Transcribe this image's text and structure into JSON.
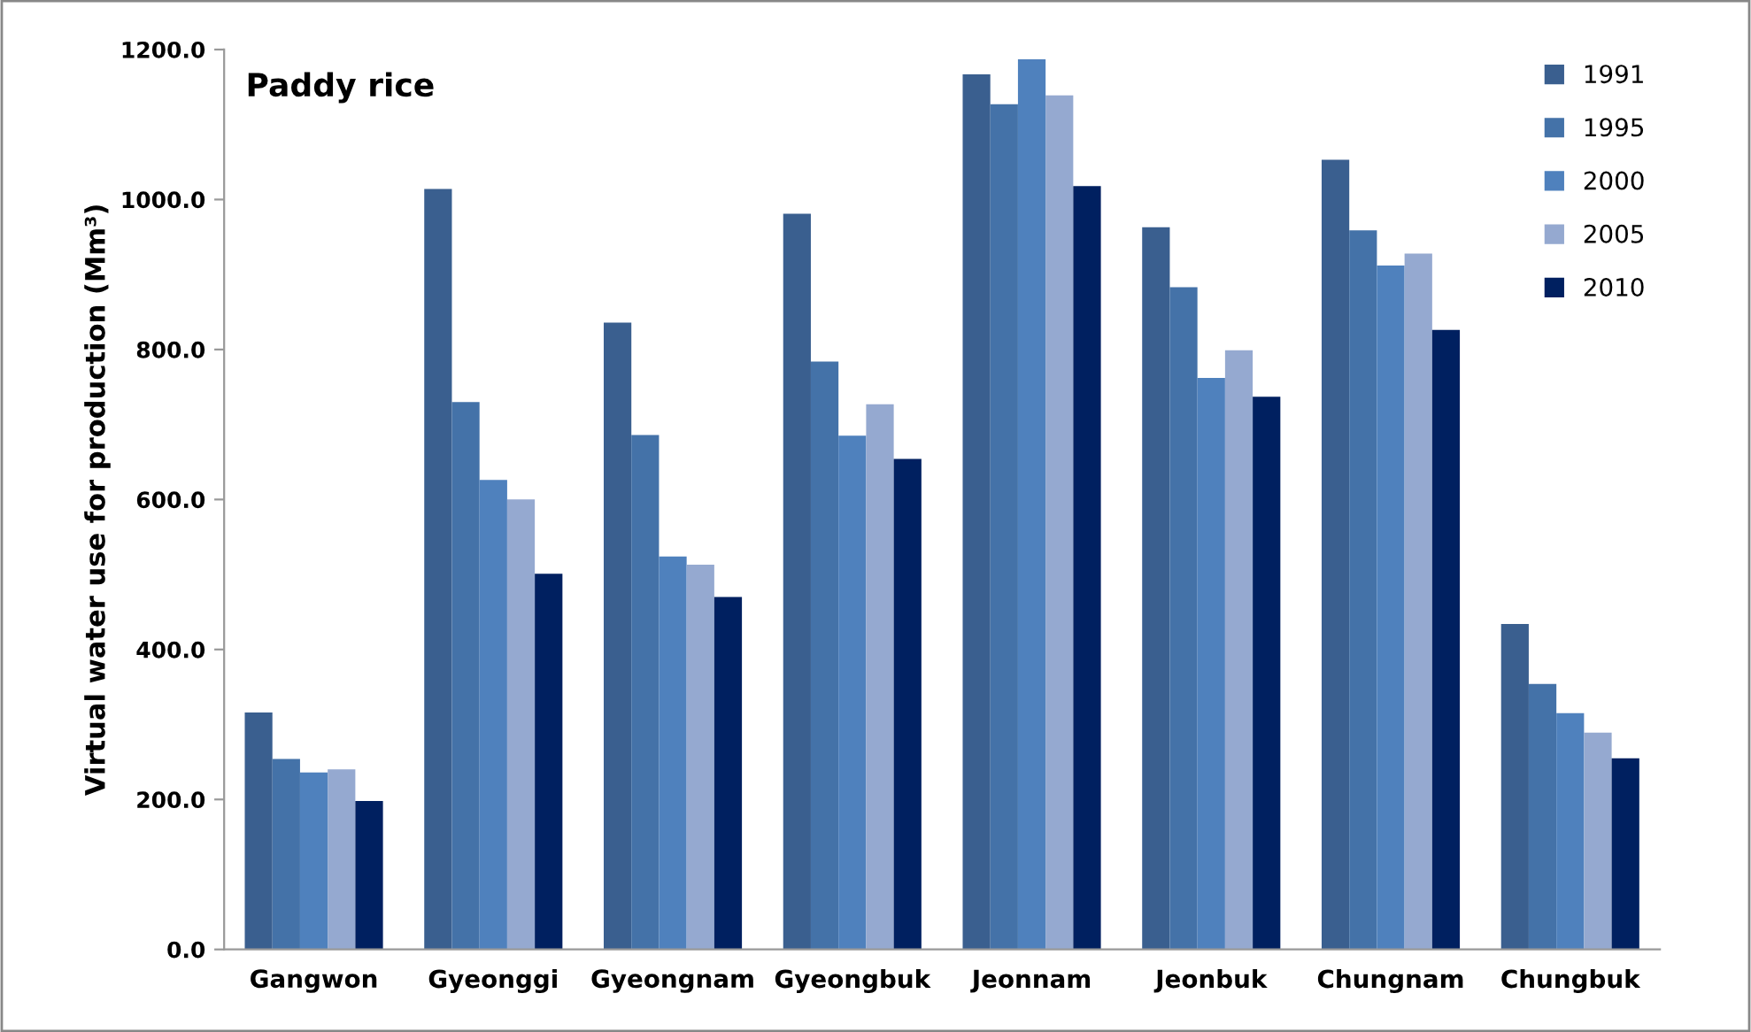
{
  "chart_data": {
    "type": "bar",
    "title": "Paddy rice",
    "ylabel": "Virtual water use for production (Mm³)",
    "categories": [
      "Gangwon",
      "Gyeonggi",
      "Gyeongnam",
      "Gyeongbuk",
      "Jeonnam",
      "Jeonbuk",
      "Chungnam",
      "Chungbuk"
    ],
    "series": [
      {
        "name": "1991",
        "color": "#3a5f8f",
        "values": [
          316,
          1014,
          836,
          981,
          1167,
          963,
          1053,
          434
        ]
      },
      {
        "name": "1995",
        "color": "#4472a8",
        "values": [
          254,
          730,
          686,
          784,
          1127,
          883,
          959,
          354
        ]
      },
      {
        "name": "2000",
        "color": "#4f81bd",
        "values": [
          236,
          626,
          524,
          685,
          1187,
          762,
          912,
          315
        ]
      },
      {
        "name": "2005",
        "color": "#95a9d0",
        "values": [
          240,
          600,
          513,
          727,
          1139,
          799,
          928,
          289
        ]
      },
      {
        "name": "2010",
        "color": "#002060",
        "values": [
          198,
          501,
          470,
          654,
          1018,
          737,
          826,
          255
        ]
      }
    ],
    "ylim": [
      0,
      1200
    ],
    "yticks": [
      {
        "value": 0,
        "label": "0.0"
      },
      {
        "value": 200,
        "label": "200.0"
      },
      {
        "value": 400,
        "label": "400.0"
      },
      {
        "value": 600,
        "label": "600.0"
      },
      {
        "value": 800,
        "label": "800.0"
      },
      {
        "value": 1000,
        "label": "1000.0"
      },
      {
        "value": 1200,
        "label": "1200.0"
      }
    ],
    "grid": false,
    "legend": "top right"
  }
}
